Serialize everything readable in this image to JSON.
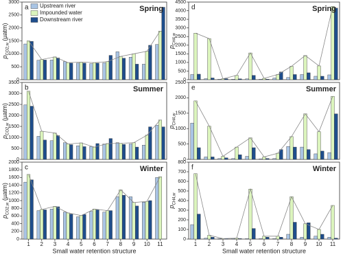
{
  "charts": [
    {
      "type": "bar",
      "letter": "a",
      "title": "Spring",
      "y_label": {
        "italic": "p",
        "sub": "CO2,w",
        "rest": " (µatm)"
      },
      "categories": [
        null,
        null,
        null,
        null,
        null,
        null,
        null,
        null,
        null,
        null,
        null
      ],
      "ylim": [
        0,
        3000
      ],
      "yticks": [
        0,
        500,
        1000,
        1500,
        2000,
        2500,
        3000
      ],
      "series": [
        {
          "name": "Upstream river",
          "color": "#a9c4e4",
          "values": [
            1380,
            750,
            760,
            700,
            640,
            620,
            650,
            1080,
            870,
            600,
            1360
          ]
        },
        {
          "name": "Impounded water",
          "color": "#dcf5bd",
          "values": [
            1500,
            780,
            880,
            660,
            680,
            660,
            700,
            900,
            1000,
            1100,
            1880
          ]
        },
        {
          "name": "Downstream river",
          "color": "#1f4e8c",
          "values": [
            1480,
            760,
            840,
            640,
            640,
            640,
            940,
            830,
            600,
            1330,
            2800
          ]
        }
      ],
      "line_color": "#888888"
    },
    {
      "type": "bar",
      "letter": "b",
      "title": "Summer",
      "y_label": {
        "italic": "p",
        "sub": "CO2,w",
        "rest": " (µatm)"
      },
      "categories": [
        null,
        null,
        null,
        null,
        null,
        null,
        null,
        null,
        null,
        null,
        null
      ],
      "ylim": [
        0,
        3500
      ],
      "yticks": [
        0,
        500,
        1000,
        1500,
        2000,
        2500,
        3000,
        3500
      ],
      "series": [
        {
          "color": "#a9c4e4",
          "values": [
            2480,
            1050,
            850,
            760,
            620,
            590,
            700,
            760,
            700,
            650,
            1550
          ]
        },
        {
          "color": "#dcf5bd",
          "values": [
            3100,
            1280,
            1200,
            700,
            750,
            560,
            720,
            730,
            760,
            1100,
            1790
          ]
        },
        {
          "color": "#1f4e8c",
          "values": [
            2420,
            880,
            1080,
            670,
            580,
            720,
            950,
            680,
            560,
            1480,
            1480
          ]
        }
      ],
      "line_color": "#888888"
    },
    {
      "type": "bar",
      "letter": "c",
      "title": "Winter",
      "y_label": {
        "italic": "p",
        "sub": "CO2,w",
        "rest": " (µatm)"
      },
      "x_label": "Small water retention structure",
      "categories": [
        "1",
        "2",
        "3",
        "4",
        "5",
        "6",
        "7",
        "8",
        "9",
        "10",
        "11"
      ],
      "ylim": [
        0,
        2000
      ],
      "yticks": [
        0,
        200,
        400,
        600,
        800,
        1000,
        1200,
        1400,
        1600,
        1800,
        2000
      ],
      "series": [
        {
          "color": "#a9c4e4",
          "values": [
            1480,
            740,
            780,
            700,
            580,
            720,
            700,
            1100,
            1100,
            960,
            1600
          ]
        },
        {
          "color": "#dcf5bd",
          "values": [
            1680,
            770,
            850,
            680,
            610,
            780,
            740,
            1280,
            950,
            980,
            1620
          ]
        },
        {
          "color": "#1f4e8c",
          "values": [
            1540,
            760,
            840,
            650,
            640,
            760,
            740,
            1140,
            860,
            1000,
            null
          ]
        }
      ],
      "line_color": "#888888"
    },
    {
      "type": "bar",
      "letter": "d",
      "title": "Spring",
      "y_label": {
        "italic": "p",
        "sub": "CH4,w"
      },
      "categories": [
        null,
        null,
        null,
        null,
        null,
        null,
        null,
        null,
        null,
        null,
        null
      ],
      "ylim": [
        0,
        4500
      ],
      "yticks": [
        0,
        500,
        1000,
        1500,
        2000,
        2500,
        3000,
        3500,
        4000,
        4500
      ],
      "series": [
        {
          "color": "#a9c4e4",
          "values": [
            300,
            60,
            30,
            30,
            50,
            30,
            100,
            130,
            300,
            200,
            280
          ]
        },
        {
          "color": "#dcf5bd",
          "values": [
            2700,
            2380,
            50,
            250,
            1550,
            80,
            300,
            780,
            1400,
            800,
            4250
          ]
        },
        {
          "color": "#1f4e8c",
          "values": [
            320,
            100,
            60,
            50,
            250,
            30,
            450,
            300,
            400,
            200,
            4150
          ]
        }
      ],
      "line_color": "#888888"
    },
    {
      "type": "bar",
      "letter": "e",
      "title": "Summer",
      "y_label": {
        "italic": "p",
        "sub": "CH4,w"
      },
      "categories": [
        null,
        null,
        null,
        null,
        null,
        null,
        null,
        null,
        null,
        null,
        null
      ],
      "ylim": [
        0,
        2500
      ],
      "yticks": [
        0,
        500,
        1000,
        1500,
        2000,
        2500
      ],
      "series": [
        {
          "color": "#a9c4e4",
          "values": [
            1180,
            80,
            30,
            30,
            100,
            20,
            30,
            420,
            400,
            180,
            220
          ]
        },
        {
          "color": "#dcf5bd",
          "values": [
            1900,
            1080,
            100,
            400,
            700,
            80,
            200,
            740,
            1480,
            900,
            2050
          ]
        },
        {
          "color": "#1f4e8c",
          "values": [
            380,
            80,
            50,
            150,
            380,
            30,
            320,
            400,
            320,
            270,
            1480
          ]
        }
      ],
      "line_color": "#888888"
    },
    {
      "type": "bar",
      "letter": "f",
      "title": "Winter",
      "y_label": {
        "italic": "p",
        "sub": "CH4,w"
      },
      "x_label": "Small water retention structure",
      "categories": [
        "1",
        "2",
        "3",
        "4",
        "5",
        "6",
        "7",
        "8",
        "9",
        "10",
        "11"
      ],
      "ylim": [
        0,
        800
      ],
      "yticks": [
        0,
        100,
        200,
        300,
        400,
        500,
        600,
        700,
        800
      ],
      "series": [
        {
          "color": "#a9c4e4",
          "values": [
            150,
            10,
            5,
            5,
            5,
            5,
            5,
            50,
            20,
            30,
            20
          ]
        },
        {
          "color": "#dcf5bd",
          "values": [
            680,
            40,
            5,
            10,
            520,
            30,
            30,
            440,
            160,
            100,
            350
          ]
        },
        {
          "color": "#1f4e8c",
          "values": [
            260,
            20,
            5,
            5,
            110,
            20,
            20,
            175,
            170,
            50,
            10
          ]
        }
      ],
      "line_color": "#888888"
    }
  ]
}
